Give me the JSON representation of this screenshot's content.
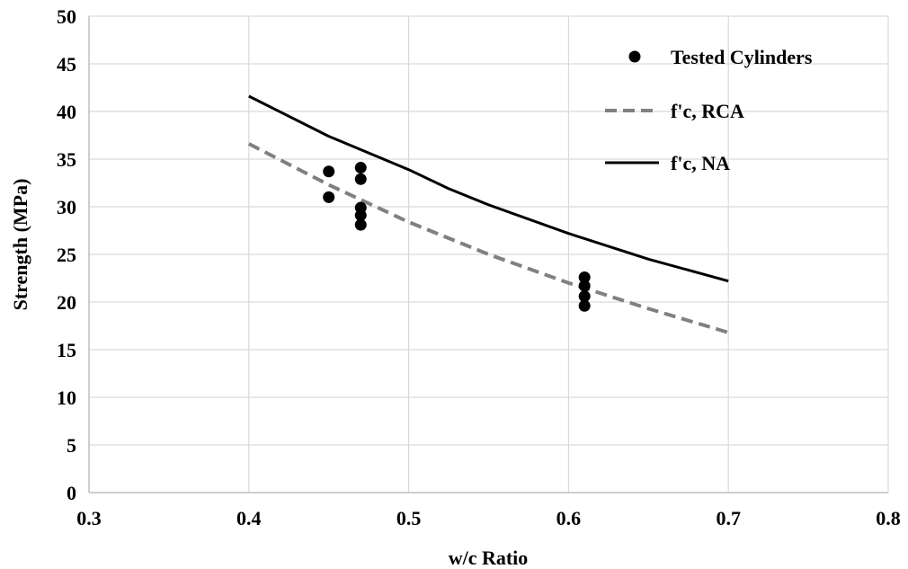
{
  "chart_data": {
    "type": "scatter",
    "title": "",
    "xlabel": "w/c Ratio",
    "ylabel": "Strength (MPa)",
    "xlim": [
      0.3,
      0.8
    ],
    "ylim": [
      0,
      50
    ],
    "x_ticks": [
      0.3,
      0.4,
      0.5,
      0.6,
      0.7,
      0.8
    ],
    "x_tick_labels": [
      "0.3",
      "0.4",
      "0.5",
      "0.6",
      "0.7",
      "0.8"
    ],
    "y_ticks": [
      0,
      5,
      10,
      15,
      20,
      25,
      30,
      35,
      40,
      45,
      50
    ],
    "y_tick_labels": [
      "0",
      "5",
      "10",
      "15",
      "20",
      "25",
      "30",
      "35",
      "40",
      "45",
      "50"
    ],
    "grid": true,
    "legend_position": "top-right",
    "series": [
      {
        "name": "Tested Cylinders",
        "kind": "scatter",
        "color": "#000000",
        "points": [
          [
            0.45,
            33.7
          ],
          [
            0.45,
            31.0
          ],
          [
            0.47,
            34.1
          ],
          [
            0.47,
            32.9
          ],
          [
            0.47,
            29.9
          ],
          [
            0.47,
            29.1
          ],
          [
            0.47,
            28.1
          ],
          [
            0.61,
            22.6
          ],
          [
            0.61,
            21.7
          ],
          [
            0.61,
            20.6
          ],
          [
            0.61,
            19.6
          ]
        ]
      },
      {
        "name": "f'c, RCA",
        "kind": "line",
        "style": "dashed",
        "color": "#808080",
        "points": [
          [
            0.4,
            36.6
          ],
          [
            0.45,
            32.3
          ],
          [
            0.5,
            28.4
          ],
          [
            0.55,
            25.0
          ],
          [
            0.6,
            22.0
          ],
          [
            0.65,
            19.3
          ],
          [
            0.7,
            16.8
          ]
        ]
      },
      {
        "name": "f'c, NA",
        "kind": "line",
        "style": "solid",
        "color": "#000000",
        "points": [
          [
            0.4,
            41.6
          ],
          [
            0.45,
            37.4
          ],
          [
            0.5,
            33.9
          ],
          [
            0.525,
            31.9
          ],
          [
            0.55,
            30.2
          ],
          [
            0.6,
            27.2
          ],
          [
            0.65,
            24.5
          ],
          [
            0.7,
            22.2
          ]
        ]
      }
    ]
  }
}
